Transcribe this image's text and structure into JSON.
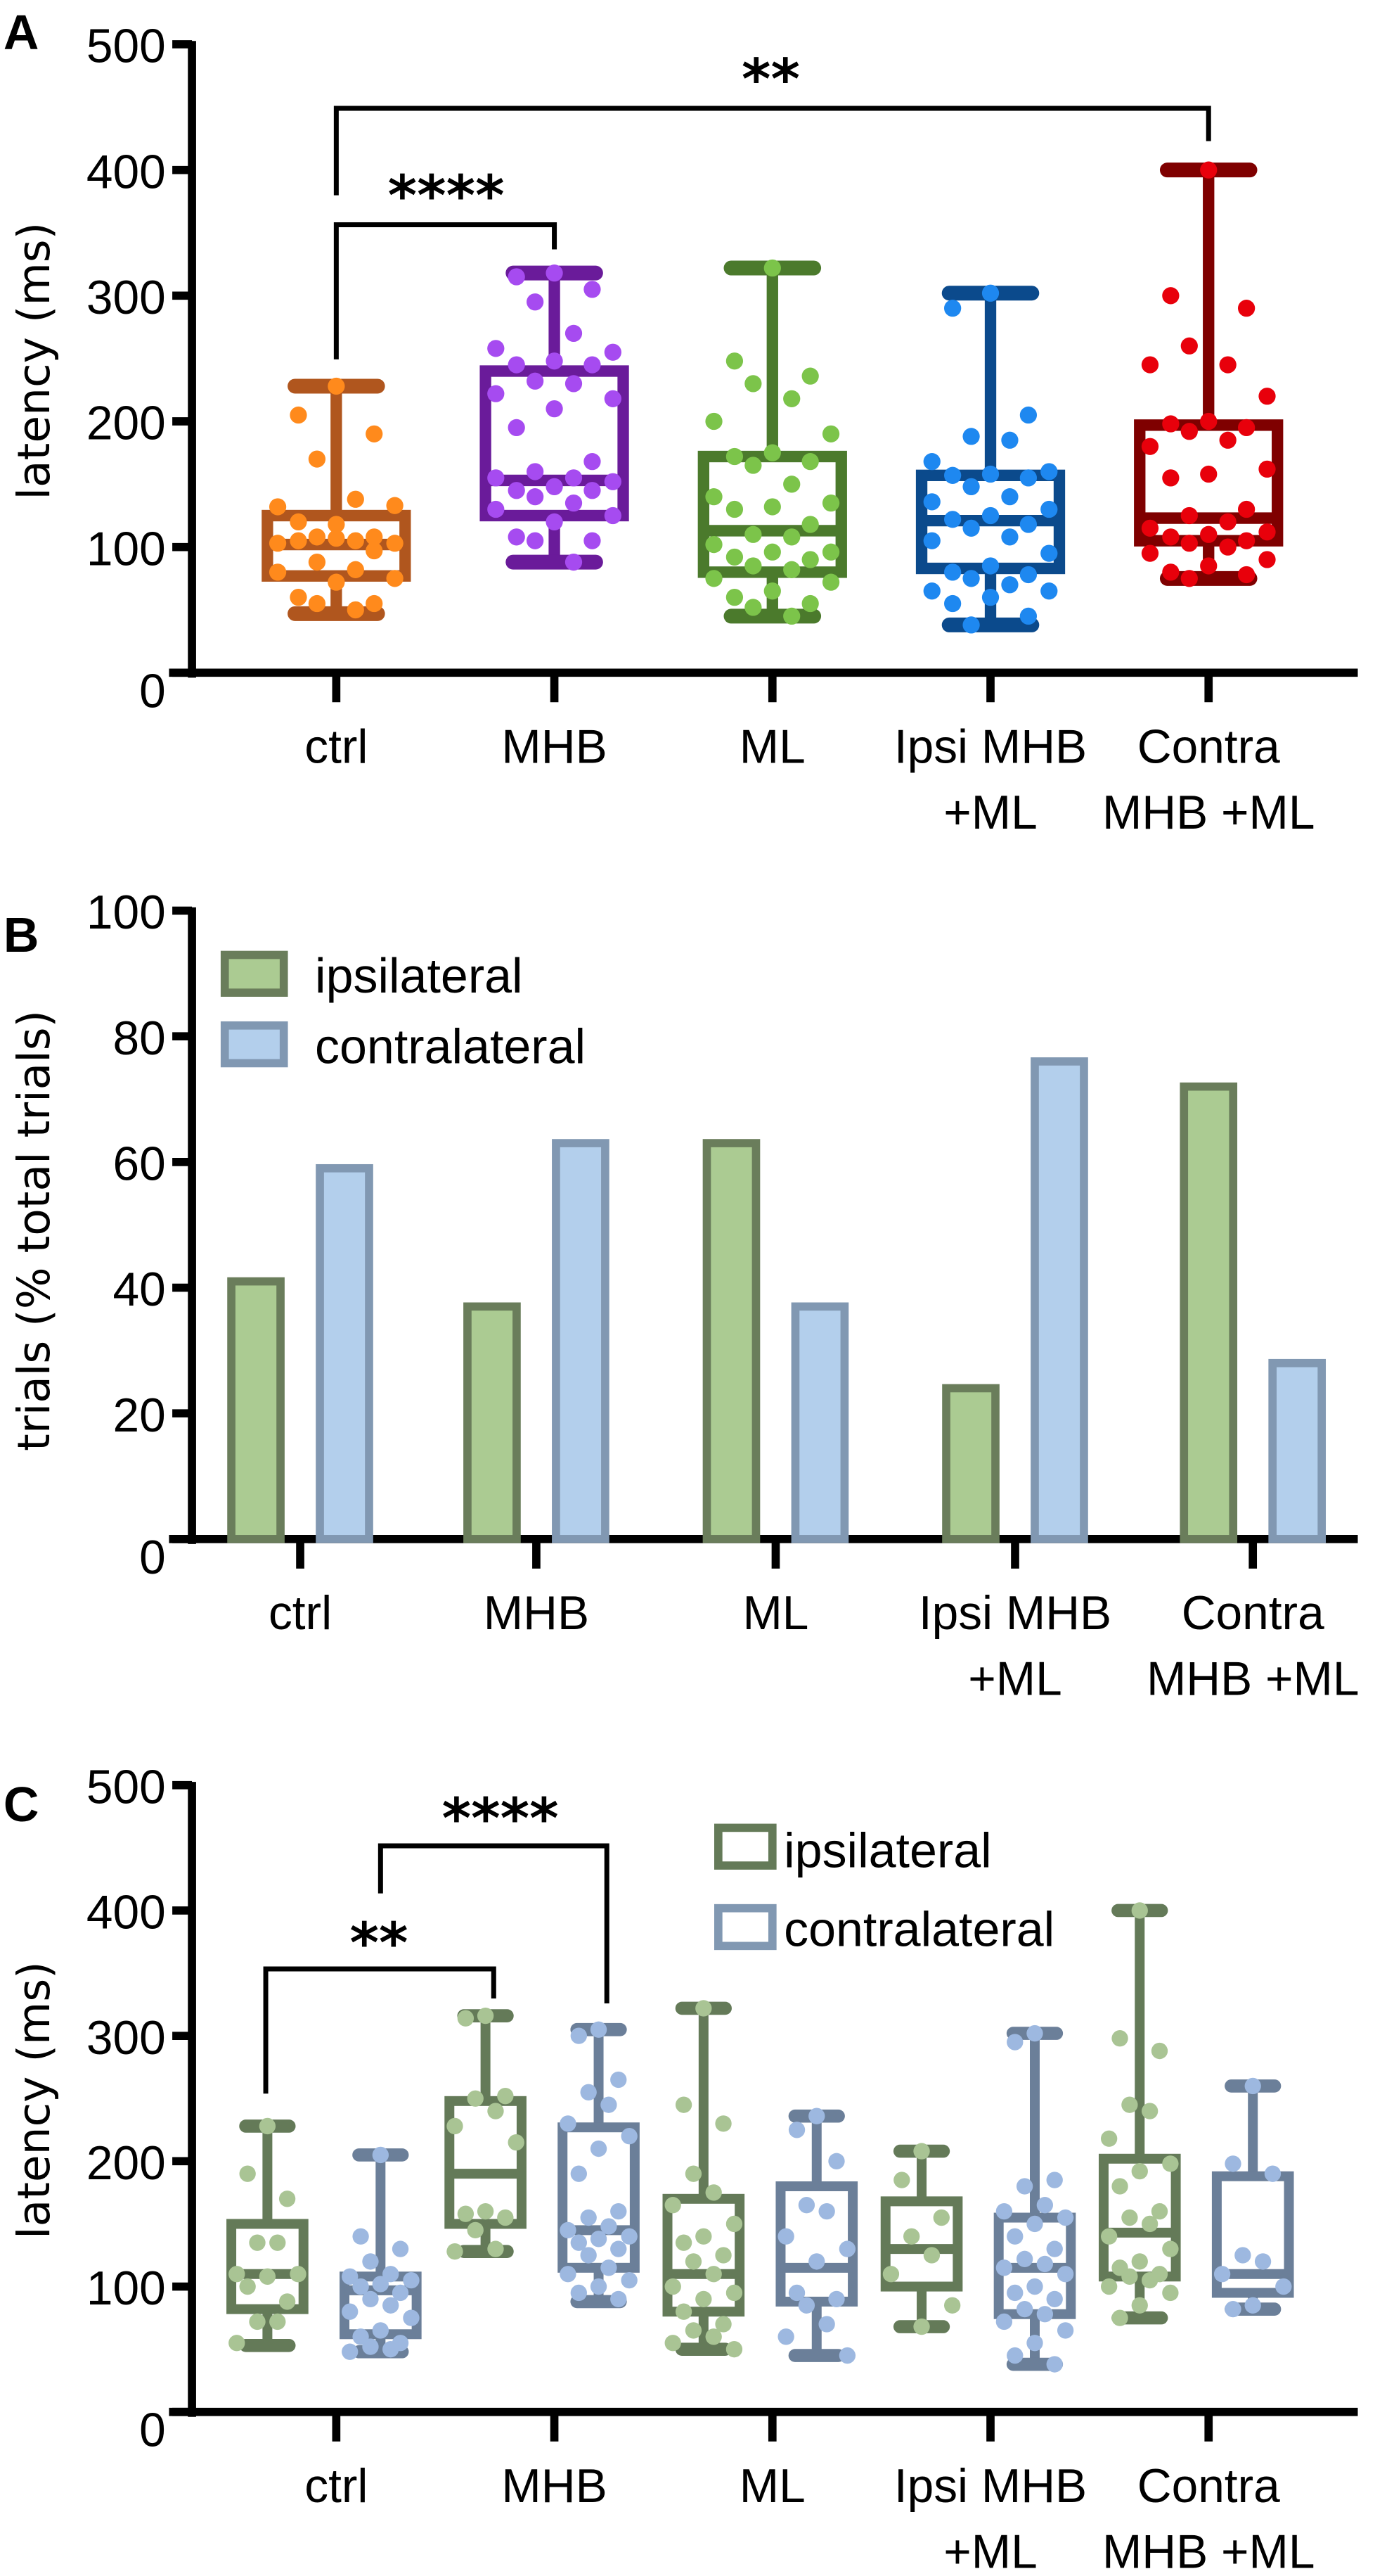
{
  "chart_data": [
    {
      "panel": "A",
      "type": "box",
      "ylabel": "latency (ms)",
      "ylim": [
        0,
        500
      ],
      "yticks": [
        0,
        100,
        200,
        300,
        400,
        500
      ],
      "categories": [
        [
          "ctrl"
        ],
        [
          "MHB"
        ],
        [
          "ML"
        ],
        [
          "Ipsi MHB",
          "+ML"
        ],
        [
          "Contra",
          "MHB +ML"
        ]
      ],
      "boxes": [
        {
          "min": 47,
          "q1": 77,
          "median": 102,
          "q3": 125,
          "max": 228,
          "box_color": "#b0561e",
          "dot_color": "#ff8a1c",
          "points": [
            228,
            205,
            190,
            170,
            138,
            132,
            133,
            118,
            120,
            108,
            108,
            105,
            103,
            103,
            107,
            105,
            97,
            88,
            82,
            80,
            75,
            72,
            60,
            55,
            55,
            50
          ]
        },
        {
          "min": 88,
          "q1": 125,
          "median": 153,
          "q3": 240,
          "max": 318,
          "box_color": "#6a1b9a",
          "dot_color": "#a64bf0",
          "points": [
            318,
            315,
            305,
            295,
            270,
            258,
            255,
            248,
            245,
            245,
            232,
            230,
            222,
            218,
            210,
            195,
            168,
            160,
            155,
            155,
            152,
            148,
            145,
            145,
            140,
            135,
            130,
            125,
            120,
            108,
            105,
            105,
            88
          ]
        },
        {
          "min": 45,
          "q1": 80,
          "median": 113,
          "q3": 172,
          "max": 322,
          "box_color": "#4b7a2c",
          "dot_color": "#7cc44a",
          "points": [
            322,
            248,
            236,
            230,
            218,
            200,
            190,
            175,
            172,
            168,
            165,
            150,
            140,
            135,
            132,
            130,
            118,
            110,
            108,
            102,
            96,
            96,
            92,
            90,
            85,
            82,
            75,
            72,
            65,
            60,
            55,
            52,
            45
          ]
        },
        {
          "min": 38,
          "q1": 83,
          "median": 121,
          "q3": 157,
          "max": 302,
          "box_color": "#0b4a8c",
          "dot_color": "#1e88f0",
          "points": [
            302,
            290,
            205,
            188,
            185,
            168,
            160,
            158,
            157,
            155,
            148,
            140,
            136,
            130,
            125,
            122,
            118,
            115,
            108,
            105,
            95,
            85,
            80,
            78,
            75,
            70,
            65,
            65,
            60,
            55,
            45,
            38
          ]
        },
        {
          "min": 75,
          "q1": 105,
          "median": 123,
          "q3": 197,
          "max": 400,
          "box_color": "#7f0000",
          "dot_color": "#e8000b",
          "points": [
            400,
            300,
            290,
            260,
            245,
            245,
            220,
            200,
            198,
            195,
            192,
            185,
            180,
            162,
            158,
            155,
            130,
            125,
            120,
            115,
            112,
            110,
            108,
            105,
            103,
            100,
            95,
            90,
            85,
            80,
            78,
            75
          ]
        }
      ],
      "significance": [
        {
          "from": "ctrl",
          "to": "MHB",
          "label": "****"
        },
        {
          "from": "ctrl",
          "to": "Contra MHB +ML",
          "label": "**"
        }
      ]
    },
    {
      "panel": "B",
      "type": "bar",
      "ylabel": "trials (% total trials)",
      "ylim": [
        0,
        100
      ],
      "yticks": [
        0,
        20,
        40,
        60,
        80,
        100
      ],
      "categories": [
        [
          "ctrl"
        ],
        [
          "MHB"
        ],
        [
          "ML"
        ],
        [
          "Ipsi MHB",
          "+ML"
        ],
        [
          "Contra",
          "MHB +ML"
        ]
      ],
      "legend_position": "top-left",
      "series": [
        {
          "name": "ipsilateral",
          "fill": "#abcb92",
          "stroke": "#6a7d5b",
          "values": [
            41,
            37,
            63,
            24,
            72
          ]
        },
        {
          "name": "contralateral",
          "fill": "#b3cfec",
          "stroke": "#8198b2",
          "values": [
            59,
            63,
            37,
            76,
            28
          ]
        }
      ]
    },
    {
      "panel": "C",
      "type": "box",
      "ylabel": "latency (ms)",
      "ylim": [
        0,
        500
      ],
      "yticks": [
        0,
        100,
        200,
        300,
        400,
        500
      ],
      "categories": [
        [
          "ctrl"
        ],
        [
          "MHB"
        ],
        [
          "ML"
        ],
        [
          "Ipsi MHB",
          "+ML"
        ],
        [
          "Contra",
          "MHB +ML"
        ]
      ],
      "legend_position": "top-right",
      "series": [
        {
          "name": "ipsilateral",
          "box_color": "#647a58",
          "dot_color": "#a9c494",
          "boxes": [
            {
              "min": 53,
              "q1": 82,
              "median": 110,
              "q3": 150,
              "max": 228,
              "points": [
                228,
                190,
                170,
                135,
                135,
                110,
                110,
                108,
                100,
                88,
                72,
                72,
                55
              ]
            },
            {
              "min": 128,
              "q1": 150,
              "median": 190,
              "q3": 248,
              "max": 316,
              "points": [
                316,
                314,
                252,
                250,
                240,
                228,
                215,
                160,
                158,
                155,
                145,
                130,
                128
              ]
            },
            {
              "min": 50,
              "q1": 80,
              "median": 110,
              "q3": 170,
              "max": 322,
              "points": [
                322,
                245,
                230,
                190,
                175,
                165,
                150,
                140,
                135,
                125,
                120,
                110,
                100,
                95,
                90,
                80,
                70,
                65,
                60,
                55,
                50
              ]
            },
            {
              "min": 68,
              "q1": 100,
              "median": 130,
              "q3": 168,
              "max": 208,
              "points": [
                208,
                185,
                155,
                140,
                125,
                110,
                85,
                68
              ]
            },
            {
              "min": 75,
              "q1": 108,
              "median": 143,
              "q3": 202,
              "max": 400,
              "points": [
                400,
                298,
                288,
                245,
                240,
                218,
                198,
                192,
                180,
                160,
                155,
                150,
                140,
                130,
                120,
                115,
                110,
                108,
                105,
                100,
                95,
                85,
                75
              ]
            }
          ]
        },
        {
          "name": "contralateral",
          "box_color": "#6b7f99",
          "dot_color": "#9db8e0",
          "boxes": [
            {
              "min": 48,
              "q1": 62,
              "median": 97,
              "q3": 108,
              "max": 205,
              "points": [
                205,
                140,
                130,
                120,
                110,
                108,
                105,
                102,
                100,
                95,
                90,
                85,
                80,
                75,
                65,
                60,
                55,
                52,
                50,
                48
              ]
            },
            {
              "min": 88,
              "q1": 115,
              "median": 145,
              "q3": 227,
              "max": 305,
              "points": [
                305,
                300,
                265,
                255,
                245,
                230,
                220,
                210,
                190,
                160,
                155,
                148,
                145,
                140,
                138,
                135,
                130,
                125,
                115,
                110,
                105,
                100,
                95,
                90
              ]
            },
            {
              "min": 45,
              "q1": 88,
              "median": 115,
              "q3": 180,
              "max": 236,
              "points": [
                236,
                225,
                200,
                165,
                160,
                140,
                130,
                120,
                95,
                90,
                85,
                70,
                60,
                45
              ]
            },
            {
              "min": 38,
              "q1": 78,
              "median": 115,
              "q3": 155,
              "max": 302,
              "points": [
                302,
                295,
                185,
                180,
                165,
                160,
                155,
                150,
                140,
                130,
                122,
                118,
                115,
                110,
                100,
                95,
                90,
                82,
                78,
                72,
                65,
                55,
                45,
                38
              ]
            },
            {
              "min": 82,
              "q1": 95,
              "median": 110,
              "q3": 188,
              "max": 260,
              "points": [
                260,
                198,
                190,
                125,
                120,
                110,
                100,
                85,
                82
              ]
            }
          ]
        }
      ],
      "significance": [
        {
          "from": "ctrl ipsilateral",
          "to": "MHB ipsilateral",
          "label": "**"
        },
        {
          "from": "ctrl contralateral",
          "to": "MHB contralateral",
          "label": "****"
        }
      ]
    }
  ]
}
